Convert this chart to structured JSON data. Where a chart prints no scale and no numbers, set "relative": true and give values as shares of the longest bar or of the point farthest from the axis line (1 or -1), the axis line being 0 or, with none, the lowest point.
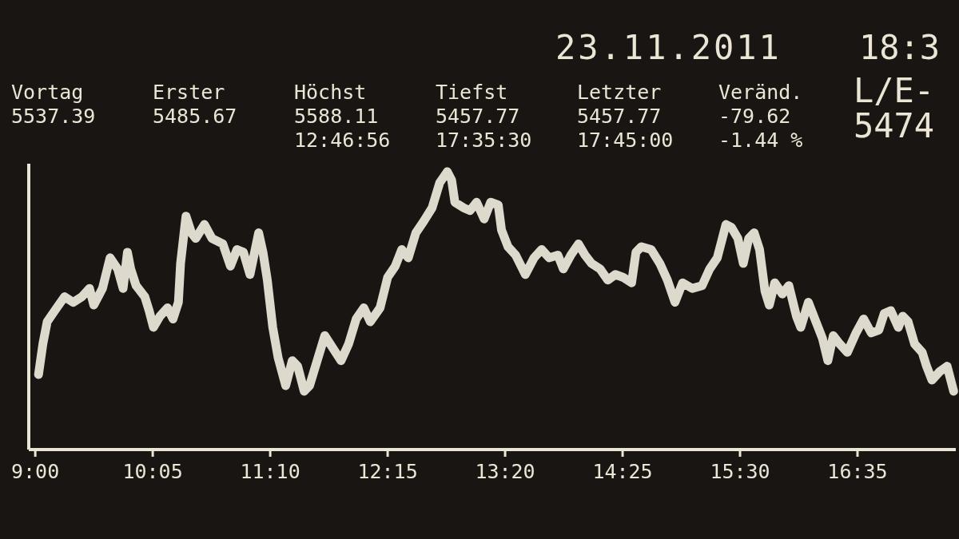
{
  "chart_data": {
    "type": "line",
    "title": "23.11.2011",
    "annotations": [
      "18:3",
      "Vortag\n5537.39",
      "Erster\n5485.67",
      "Höchst\n5588.11\n12:46:56",
      "Tiefst\n5457.77\n17:35:30",
      "Letzter\n5457.77\n17:45:00",
      "Veränd.\n-79.62\n-1.44 %",
      "L/E-\n5474"
    ],
    "relative": true,
    "color": "#ddd9cc",
    "xlim": [
      8.94,
      17.49
    ],
    "xticks": [
      {
        "value": 9,
        "label": "9:00"
      },
      {
        "value": 10.0833,
        "label": "10:05"
      },
      {
        "value": 11.1667,
        "label": "11:10"
      },
      {
        "value": 12.25,
        "label": "12:15"
      },
      {
        "value": 13.3333,
        "label": "13:20"
      },
      {
        "value": 14.4167,
        "label": "14:25"
      },
      {
        "value": 15.5,
        "label": "15:30"
      },
      {
        "value": 16.5833,
        "label": "16:35"
      }
    ],
    "x": [
      9.03,
      9.07,
      9.11,
      9.18,
      9.27,
      9.35,
      9.43,
      9.5,
      9.54,
      9.62,
      9.69,
      9.76,
      9.81,
      9.85,
      9.88,
      9.93,
      10.01,
      10.05,
      10.09,
      10.15,
      10.22,
      10.27,
      10.32,
      10.34,
      10.39,
      10.44,
      10.48,
      10.56,
      10.63,
      10.73,
      10.8,
      10.86,
      10.92,
      10.98,
      11.06,
      11.1,
      11.14,
      11.19,
      11.24,
      11.31,
      11.37,
      11.42,
      11.48,
      11.53,
      11.6,
      11.67,
      11.82,
      11.89,
      11.96,
      12.03,
      12.09,
      12.18,
      12.25,
      12.32,
      12.38,
      12.44,
      12.51,
      12.58,
      12.66,
      12.73,
      12.8,
      12.84,
      12.87,
      12.95,
      13.01,
      13.07,
      13.14,
      13.2,
      13.27,
      13.3,
      13.36,
      13.43,
      13.52,
      13.6,
      13.67,
      13.74,
      13.82,
      13.87,
      13.94,
      14.01,
      14.07,
      14.13,
      14.21,
      14.28,
      14.35,
      14.42,
      14.5,
      14.54,
      14.59,
      14.68,
      14.76,
      14.83,
      14.9,
      14.97,
      15.06,
      15.15,
      15.22,
      15.29,
      15.37,
      15.42,
      15.48,
      15.53,
      15.58,
      15.63,
      15.68,
      15.73,
      15.77,
      15.82,
      15.89,
      15.95,
      16.02,
      16.06,
      16.13,
      16.2,
      16.26,
      16.31,
      16.36,
      16.42,
      16.49,
      16.57,
      16.64,
      16.71,
      16.78,
      16.83,
      16.89,
      16.96,
      17.0,
      17.05,
      17.11,
      17.18,
      17.22,
      17.27,
      17.34,
      17.41,
      17.47
    ],
    "values": [
      0.27,
      0.38,
      0.46,
      0.5,
      0.55,
      0.53,
      0.55,
      0.58,
      0.52,
      0.58,
      0.69,
      0.65,
      0.58,
      0.71,
      0.65,
      0.59,
      0.55,
      0.5,
      0.44,
      0.48,
      0.51,
      0.47,
      0.53,
      0.67,
      0.84,
      0.78,
      0.76,
      0.81,
      0.76,
      0.74,
      0.66,
      0.72,
      0.71,
      0.63,
      0.78,
      0.71,
      0.61,
      0.44,
      0.33,
      0.23,
      0.32,
      0.3,
      0.21,
      0.23,
      0.32,
      0.41,
      0.32,
      0.38,
      0.47,
      0.51,
      0.46,
      0.51,
      0.62,
      0.66,
      0.72,
      0.69,
      0.78,
      0.82,
      0.87,
      0.96,
      1,
      0.97,
      0.89,
      0.87,
      0.86,
      0.89,
      0.83,
      0.89,
      0.88,
      0.79,
      0.73,
      0.7,
      0.63,
      0.69,
      0.72,
      0.69,
      0.7,
      0.65,
      0.7,
      0.74,
      0.7,
      0.67,
      0.65,
      0.61,
      0.63,
      0.62,
      0.6,
      0.71,
      0.73,
      0.72,
      0.67,
      0.61,
      0.53,
      0.6,
      0.58,
      0.59,
      0.65,
      0.69,
      0.81,
      0.8,
      0.76,
      0.67,
      0.76,
      0.78,
      0.72,
      0.57,
      0.52,
      0.6,
      0.56,
      0.59,
      0.48,
      0.44,
      0.53,
      0.46,
      0.4,
      0.32,
      0.41,
      0.38,
      0.35,
      0.42,
      0.47,
      0.42,
      0.43,
      0.49,
      0.5,
      0.44,
      0.48,
      0.46,
      0.38,
      0.35,
      0.3,
      0.25,
      0.28,
      0.3,
      0.21
    ]
  }
}
